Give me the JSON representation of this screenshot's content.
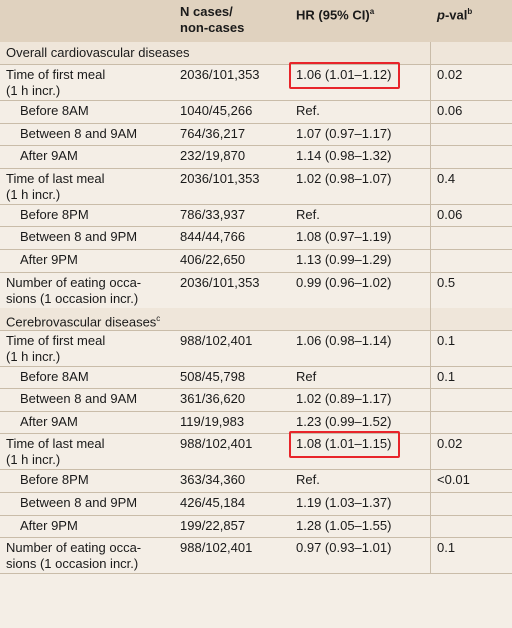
{
  "header": {
    "n_cases_line1": "N cases/",
    "n_cases_line2": "non-cases",
    "hr": "HR (95% CI)",
    "hr_sup": "a",
    "pval_p": "p",
    "pval_rest": "-val",
    "pval_sup": "b"
  },
  "sections": [
    {
      "title": "Overall cardiovascular diseases",
      "title_sup": "",
      "rows": [
        {
          "label1": "Time of first meal",
          "label2": "(1 h incr.)",
          "n": "2036/101,353",
          "hr": "1.06 (1.01–1.12)",
          "p": "0.02",
          "highlighted": true
        },
        {
          "label1": "Before 8AM",
          "n": "1040/45,266",
          "hr": "Ref.",
          "p": "0.06"
        },
        {
          "label1": "Between 8 and 9AM",
          "n": "764/36,217",
          "hr": "1.07 (0.97–1.17)",
          "p": ""
        },
        {
          "label1": "After 9AM",
          "n": "232/19,870",
          "hr": "1.14 (0.98–1.32)",
          "p": ""
        },
        {
          "label1": "Time of last meal",
          "label2": "(1 h incr.)",
          "n": "2036/101,353",
          "hr": "1.02 (0.98–1.07)",
          "p": "0.4"
        },
        {
          "label1": "Before 8PM",
          "n": "786/33,937",
          "hr": "Ref.",
          "p": "0.06"
        },
        {
          "label1": "Between 8 and 9PM",
          "n": "844/44,766",
          "hr": "1.08 (0.97–1.19)",
          "p": ""
        },
        {
          "label1": "After 9PM",
          "n": "406/22,650",
          "hr": "1.13 (0.99–1.29)",
          "p": ""
        },
        {
          "label1": "Number of eating occa-",
          "label2": "sions (1 occasion incr.)",
          "n": "2036/101,353",
          "hr": "0.99 (0.96–1.02)",
          "p": "0.5"
        }
      ]
    },
    {
      "title": "Cerebrovascular diseases",
      "title_sup": "c",
      "rows": [
        {
          "label1": "Time of first meal",
          "label2": "(1 h incr.)",
          "n": "988/102,401",
          "hr": "1.06 (0.98–1.14)",
          "p": "0.1"
        },
        {
          "label1": "Before 8AM",
          "n": "508/45,798",
          "hr": "Ref",
          "p": "0.1"
        },
        {
          "label1": "Between 8 and 9AM",
          "n": "361/36,620",
          "hr": "1.02 (0.89–1.17)",
          "p": ""
        },
        {
          "label1": "After 9AM",
          "n": "119/19,983",
          "hr": "1.23 (0.99–1.52)",
          "p": ""
        },
        {
          "label1": "Time of last meal",
          "label2": "(1 h incr.)",
          "n": "988/102,401",
          "hr": "1.08 (1.01–1.15)",
          "p": "0.02",
          "highlighted": true
        },
        {
          "label1": "Before 8PM",
          "n": "363/34,360",
          "hr": "Ref.",
          "p": "<0.01"
        },
        {
          "label1": "Between 8 and 9PM",
          "n": "426/45,184",
          "hr": "1.19 (1.03–1.37)",
          "p": ""
        },
        {
          "label1": "After 9PM",
          "n": "199/22,857",
          "hr": "1.28 (1.05–1.55)",
          "p": ""
        },
        {
          "label1": "Number of eating occa-",
          "label2": "sions (1 occasion incr.)",
          "n": "988/102,401",
          "hr": "0.97 (0.93–1.01)",
          "p": "0.1"
        }
      ]
    }
  ],
  "colors": {
    "header_bg": "#e0d2bf",
    "body_bg": "#f4eee6",
    "highlight": "#e8242a"
  }
}
